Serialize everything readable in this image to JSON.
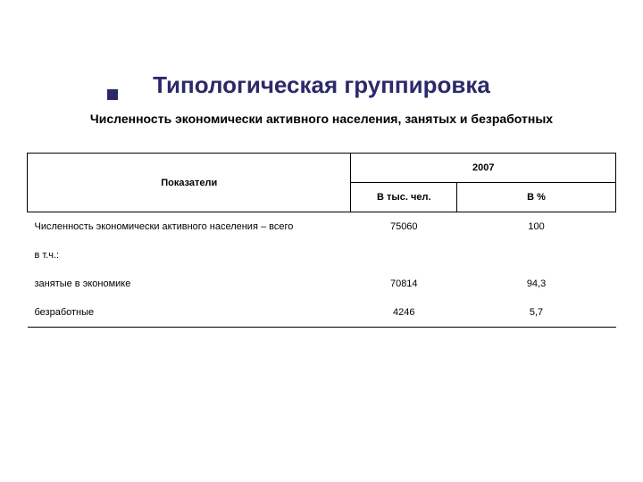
{
  "title": "Типологическая группировка",
  "subtitle": "Численность экономически активного населения, занятых и безработных",
  "table": {
    "header": {
      "indicators": "Показатели",
      "year": "2007",
      "thousands": "В тыс. чел.",
      "percent": "В %"
    },
    "rows": [
      {
        "label": "Численность экономически активного населения – всего",
        "thous": "75060",
        "pct": "100"
      },
      {
        "label": "в т.ч.:",
        "thous": "",
        "pct": ""
      },
      {
        "label": "занятые в экономике",
        "thous": "70814",
        "pct": "94,3"
      },
      {
        "label": "безработные",
        "thous": "4246",
        "pct": "5,7"
      }
    ]
  },
  "colors": {
    "accent": "#2a2a6a",
    "text": "#000000",
    "background": "#ffffff",
    "border": "#000000"
  },
  "typography": {
    "title_fontsize": 26,
    "subtitle_fontsize": 14,
    "table_fontsize": 11,
    "font_family": "Arial"
  }
}
